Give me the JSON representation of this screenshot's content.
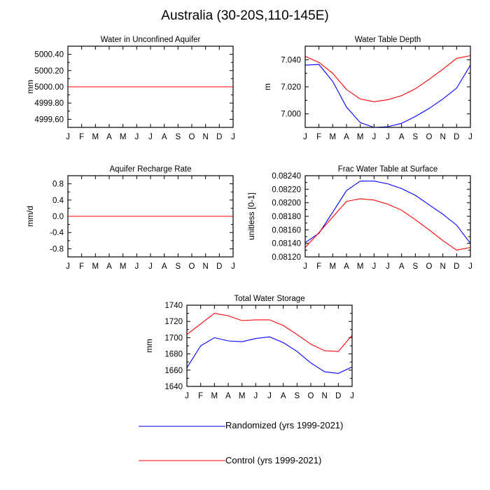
{
  "figure_title": "Australia (30-20S,110-145E)",
  "months": [
    "J",
    "F",
    "M",
    "A",
    "M",
    "J",
    "J",
    "A",
    "S",
    "O",
    "N",
    "D",
    "J"
  ],
  "colors": {
    "randomized": "#0000ff",
    "control": "#ff0000",
    "axis": "#000000"
  },
  "legend": [
    {
      "key": "randomized",
      "label": "Randomized (yrs 1999-2021)"
    },
    {
      "key": "control",
      "label": "Control (yrs 1999-2021)"
    }
  ],
  "chart_data": [
    {
      "id": "water-unconfined",
      "type": "line",
      "title": "Water in Unconfined Aquifer",
      "ylabel": "mm",
      "ylim": [
        4999.5,
        5000.5
      ],
      "yticks_major": [
        4999.6,
        4999.8,
        5000.0,
        5000.2,
        5000.4
      ],
      "yticks_minor": [
        4999.5,
        4999.7,
        4999.9,
        5000.1,
        5000.3,
        5000.5
      ],
      "ytick_labels": [
        "4999.60",
        "4999.80",
        "5000.00",
        "5000.20",
        "5000.40"
      ],
      "series": [
        {
          "name": "Randomized",
          "values": [
            5000,
            5000,
            5000,
            5000,
            5000,
            5000,
            5000,
            5000,
            5000,
            5000,
            5000,
            5000,
            5000
          ]
        },
        {
          "name": "Control",
          "values": [
            5000,
            5000,
            5000,
            5000,
            5000,
            5000,
            5000,
            5000,
            5000,
            5000,
            5000,
            5000,
            5000
          ]
        }
      ]
    },
    {
      "id": "water-table-depth",
      "type": "line",
      "title": "Water Table Depth",
      "ylabel": "m",
      "ylim": [
        6.99,
        7.05
      ],
      "yticks_major": [
        7.0,
        7.02,
        7.04
      ],
      "yticks_minor": [
        6.99,
        7.01,
        7.03,
        7.05
      ],
      "ytick_labels": [
        "7.000",
        "7.020",
        "7.040"
      ],
      "series": [
        {
          "name": "Randomized",
          "values": [
            7.036,
            7.0365,
            7.024,
            7.005,
            6.9935,
            6.99,
            6.9905,
            6.993,
            6.998,
            7.004,
            7.011,
            7.019,
            7.036
          ]
        },
        {
          "name": "Control",
          "values": [
            7.0425,
            7.038,
            7.03,
            7.018,
            7.011,
            7.009,
            7.0105,
            7.0135,
            7.0185,
            7.0255,
            7.033,
            7.041,
            7.043
          ]
        }
      ]
    },
    {
      "id": "recharge-rate",
      "type": "line",
      "title": "Aquifer Recharge Rate",
      "ylabel": "mm/d",
      "ylim": [
        -1.0,
        1.0
      ],
      "yticks_major": [
        -0.8,
        -0.4,
        0.0,
        0.4,
        0.8
      ],
      "yticks_minor": [
        -1.0,
        -0.6,
        -0.2,
        0.2,
        0.6,
        1.0
      ],
      "ytick_labels": [
        "-0.8",
        "-0.4",
        "0.0",
        "0.4",
        "0.8"
      ],
      "series": [
        {
          "name": "Randomized",
          "values": [
            0,
            0,
            0,
            0,
            0,
            0,
            0,
            0,
            0,
            0,
            0,
            0,
            0
          ]
        },
        {
          "name": "Control",
          "values": [
            0,
            0,
            0,
            0,
            0,
            0,
            0,
            0,
            0,
            0,
            0,
            0,
            0
          ]
        }
      ]
    },
    {
      "id": "frac-water-table",
      "type": "line",
      "title": "Frac Water Table at Surface",
      "ylabel": "unitless [0-1]",
      "ylim": [
        0.0812,
        0.0824
      ],
      "yticks_major": [
        0.0812,
        0.0814,
        0.0816,
        0.0818,
        0.082,
        0.0822,
        0.0824
      ],
      "yticks_minor": [
        0.0813,
        0.0815,
        0.0817,
        0.0819,
        0.0821,
        0.0823
      ],
      "ytick_labels": [
        "0.08120",
        "0.08140",
        "0.08160",
        "0.08180",
        "0.08200",
        "0.08220",
        "0.08240"
      ],
      "series": [
        {
          "name": "Randomized",
          "values": [
            0.08141,
            0.08155,
            0.08186,
            0.08218,
            0.08232,
            0.08232,
            0.08228,
            0.08221,
            0.08211,
            0.08197,
            0.08183,
            0.08167,
            0.0814
          ]
        },
        {
          "name": "Control",
          "values": [
            0.08134,
            0.08156,
            0.08179,
            0.08202,
            0.08206,
            0.08204,
            0.08198,
            0.08189,
            0.08175,
            0.0816,
            0.08144,
            0.0813,
            0.08134
          ]
        }
      ]
    },
    {
      "id": "total-water-storage",
      "type": "line",
      "title": "Total Water Storage",
      "ylabel": "mm",
      "ylim": [
        1640,
        1740
      ],
      "yticks_major": [
        1640,
        1660,
        1680,
        1700,
        1720,
        1740
      ],
      "yticks_minor": [
        1650,
        1670,
        1690,
        1710,
        1730
      ],
      "ytick_labels": [
        "1640",
        "1660",
        "1680",
        "1700",
        "1720",
        "1740"
      ],
      "series": [
        {
          "name": "Randomized",
          "values": [
            1663,
            1690,
            1700,
            1696,
            1695,
            1699,
            1701,
            1694,
            1683,
            1669,
            1658,
            1656,
            1664
          ]
        },
        {
          "name": "Control",
          "values": [
            1704,
            1717,
            1730,
            1727,
            1721,
            1722,
            1722,
            1715,
            1704,
            1692,
            1684,
            1683,
            1703
          ]
        }
      ]
    }
  ]
}
